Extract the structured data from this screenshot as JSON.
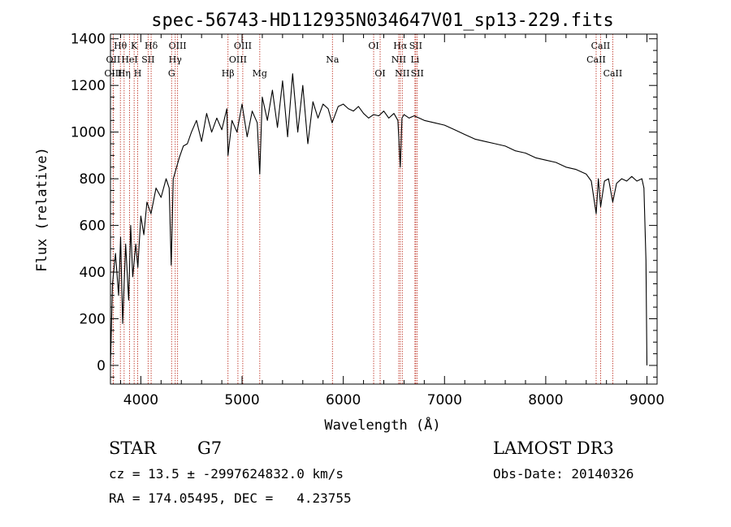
{
  "chart_data": {
    "type": "line",
    "title": "spec-56743-HD112935N034647V01_sp13-229.fits",
    "xlabel": "Wavelength (Å)",
    "ylabel": "Flux (relative)",
    "xlim": [
      3700,
      9100
    ],
    "ylim": [
      -80,
      1420
    ],
    "xticks": [
      4000,
      5000,
      6000,
      7000,
      8000,
      9000
    ],
    "yticks": [
      0,
      200,
      400,
      600,
      800,
      1000,
      1200,
      1400
    ],
    "grid": false,
    "series": [
      {
        "name": "flux",
        "x": [
          3700,
          3720,
          3750,
          3780,
          3800,
          3820,
          3850,
          3880,
          3900,
          3920,
          3950,
          3970,
          4000,
          4030,
          4060,
          4100,
          4150,
          4200,
          4250,
          4280,
          4300,
          4320,
          4340,
          4380,
          4420,
          4460,
          4500,
          4550,
          4600,
          4650,
          4700,
          4750,
          4800,
          4850,
          4861,
          4900,
          4950,
          5000,
          5050,
          5100,
          5150,
          5175,
          5200,
          5250,
          5300,
          5350,
          5400,
          5450,
          5500,
          5550,
          5600,
          5650,
          5700,
          5750,
          5800,
          5850,
          5890,
          5950,
          6000,
          6050,
          6100,
          6150,
          6200,
          6250,
          6300,
          6350,
          6400,
          6450,
          6500,
          6540,
          6563,
          6580,
          6600,
          6650,
          6700,
          6750,
          6800,
          6900,
          7000,
          7100,
          7200,
          7300,
          7400,
          7500,
          7600,
          7700,
          7800,
          7900,
          8000,
          8100,
          8200,
          8300,
          8400,
          8450,
          8498,
          8520,
          8542,
          8580,
          8620,
          8662,
          8700,
          8750,
          8800,
          8850,
          8900,
          8950,
          8970,
          8990,
          9000
        ],
        "y": [
          0,
          350,
          480,
          300,
          550,
          180,
          520,
          280,
          600,
          380,
          520,
          420,
          640,
          560,
          700,
          650,
          760,
          720,
          800,
          760,
          430,
          800,
          830,
          890,
          940,
          950,
          1000,
          1050,
          960,
          1080,
          1000,
          1060,
          1010,
          1100,
          900,
          1050,
          1000,
          1120,
          980,
          1090,
          1040,
          820,
          1150,
          1050,
          1180,
          1020,
          1220,
          980,
          1250,
          1000,
          1200,
          950,
          1130,
          1060,
          1120,
          1100,
          1040,
          1110,
          1120,
          1100,
          1090,
          1110,
          1080,
          1060,
          1075,
          1070,
          1090,
          1060,
          1080,
          1050,
          850,
          1060,
          1075,
          1060,
          1070,
          1060,
          1050,
          1040,
          1030,
          1010,
          990,
          970,
          960,
          950,
          940,
          920,
          910,
          890,
          880,
          870,
          850,
          840,
          820,
          790,
          650,
          800,
          680,
          790,
          800,
          700,
          780,
          800,
          790,
          810,
          790,
          800,
          760,
          450,
          0
        ]
      }
    ],
    "lines": [
      {
        "label": "Hθ",
        "x": 3798,
        "row": 0
      },
      {
        "label": "OII",
        "x": 3727,
        "row": 1
      },
      {
        "label": "OIII",
        "x": 3727,
        "row": 2
      },
      {
        "label": "HeI",
        "x": 3889,
        "row": 1
      },
      {
        "label": "Hη",
        "x": 3835,
        "row": 2
      },
      {
        "label": "K",
        "x": 3934,
        "row": 0
      },
      {
        "label": "H",
        "x": 3969,
        "row": 2
      },
      {
        "label": "SII",
        "x": 4072,
        "row": 1
      },
      {
        "label": "Hδ",
        "x": 4102,
        "row": 0
      },
      {
        "label": "OIII",
        "x": 4363,
        "row": 0
      },
      {
        "label": "Hγ",
        "x": 4340,
        "row": 1
      },
      {
        "label": "G",
        "x": 4304,
        "row": 2
      },
      {
        "label": "OIII",
        "x": 5007,
        "row": 0
      },
      {
        "label": "OIII",
        "x": 4959,
        "row": 1
      },
      {
        "label": "Hβ",
        "x": 4861,
        "row": 2
      },
      {
        "label": "Mg",
        "x": 5175,
        "row": 2
      },
      {
        "label": "Na",
        "x": 5893,
        "row": 1
      },
      {
        "label": "OI",
        "x": 6300,
        "row": 0
      },
      {
        "label": "OI",
        "x": 6364,
        "row": 2
      },
      {
        "label": "Hα",
        "x": 6563,
        "row": 0
      },
      {
        "label": "SII",
        "x": 6716,
        "row": 0
      },
      {
        "label": "NII",
        "x": 6548,
        "row": 1
      },
      {
        "label": "Li",
        "x": 6708,
        "row": 1
      },
      {
        "label": "NII",
        "x": 6583,
        "row": 2
      },
      {
        "label": "SII",
        "x": 6731,
        "row": 2
      },
      {
        "label": "CaII",
        "x": 8542,
        "row": 0
      },
      {
        "label": "CaII",
        "x": 8498,
        "row": 1
      },
      {
        "label": "CaII",
        "x": 8662,
        "row": 2
      }
    ]
  },
  "info": {
    "object_class": "STAR",
    "subclass": "G7",
    "survey": "LAMOST DR3",
    "cz_line": "cz = 13.5 ± -2997624832.0 km/s",
    "obs_date": "Obs-Date: 20140326",
    "radec_line": "RA = 174.05495, DEC =   4.23755"
  }
}
